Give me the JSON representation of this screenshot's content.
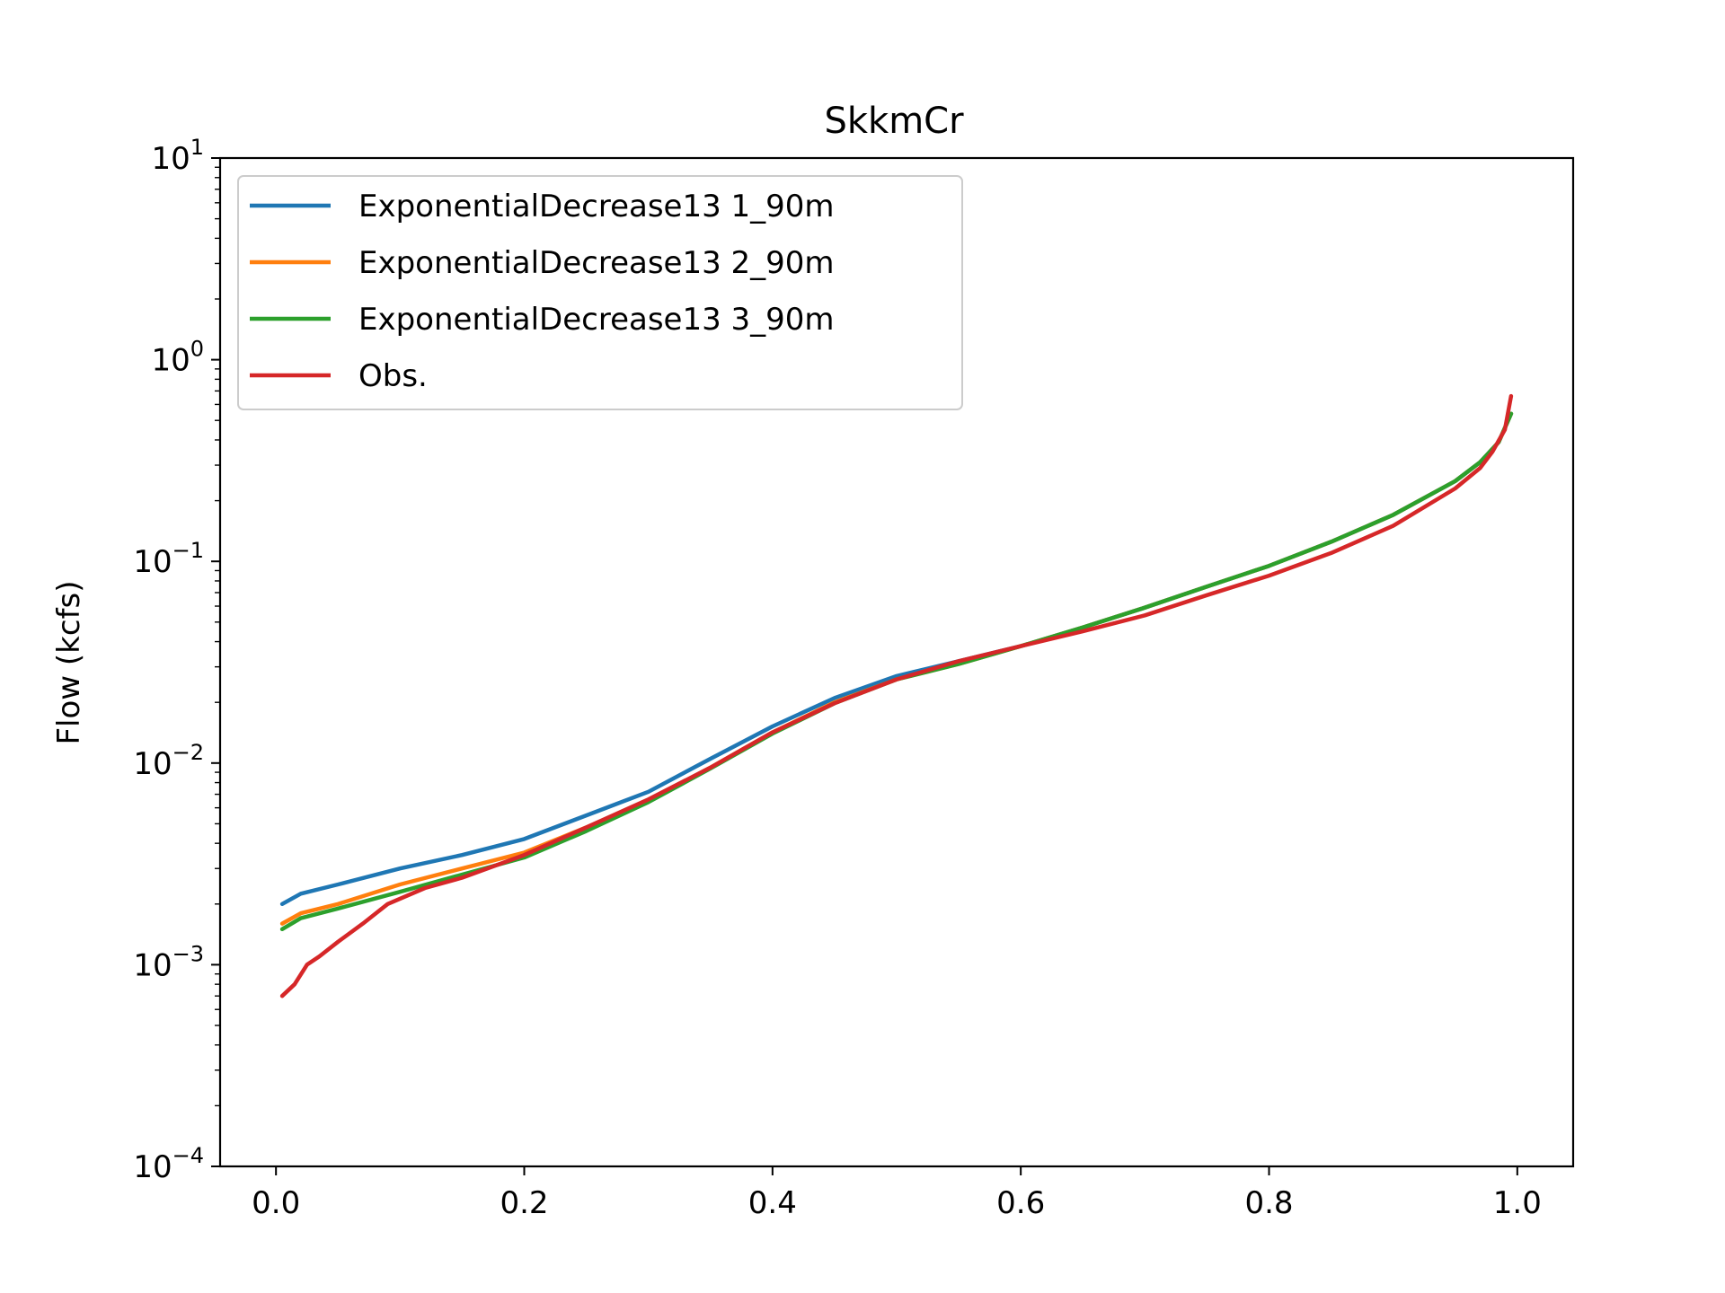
{
  "chart_data": {
    "type": "line",
    "title": "SkkmCr",
    "xlabel": "",
    "ylabel": "Flow (kcfs)",
    "xlim": [
      -0.045,
      1.045
    ],
    "ylim": [
      0.0001,
      10
    ],
    "y_scale": "log",
    "grid": false,
    "legend_position": "upper-left",
    "x_ticks": [
      {
        "value": 0.0,
        "label": "0.0"
      },
      {
        "value": 0.2,
        "label": "0.2"
      },
      {
        "value": 0.4,
        "label": "0.4"
      },
      {
        "value": 0.6,
        "label": "0.6"
      },
      {
        "value": 0.8,
        "label": "0.8"
      },
      {
        "value": 1.0,
        "label": "1.0"
      }
    ],
    "y_ticks": [
      {
        "value": 0.0001,
        "base": "10",
        "exp": "−4"
      },
      {
        "value": 0.001,
        "base": "10",
        "exp": "−3"
      },
      {
        "value": 0.01,
        "base": "10",
        "exp": "−2"
      },
      {
        "value": 0.1,
        "base": "10",
        "exp": "−1"
      },
      {
        "value": 1,
        "base": "10",
        "exp": "0"
      },
      {
        "value": 10,
        "base": "10",
        "exp": "1"
      }
    ],
    "series": [
      {
        "name": "ExponentialDecrease13 1_90m",
        "color": "#1f77b4",
        "x": [
          0.005,
          0.02,
          0.05,
          0.1,
          0.15,
          0.2,
          0.25,
          0.3,
          0.35,
          0.4,
          0.45,
          0.5,
          0.55,
          0.6,
          0.65,
          0.7,
          0.75,
          0.8,
          0.85,
          0.9,
          0.95,
          0.97,
          0.985,
          0.995
        ],
        "y": [
          0.002,
          0.00225,
          0.0025,
          0.003,
          0.0035,
          0.0042,
          0.0055,
          0.0072,
          0.0105,
          0.0152,
          0.021,
          0.027,
          0.032,
          0.038,
          0.047,
          0.059,
          0.075,
          0.095,
          0.125,
          0.17,
          0.25,
          0.31,
          0.39,
          0.54
        ]
      },
      {
        "name": "ExponentialDecrease13 2_90m",
        "color": "#ff7f0e",
        "x": [
          0.005,
          0.02,
          0.05,
          0.1,
          0.15,
          0.2,
          0.25,
          0.3,
          0.35,
          0.4,
          0.45,
          0.5,
          0.55,
          0.6,
          0.65,
          0.7,
          0.75,
          0.8,
          0.85,
          0.9,
          0.95,
          0.97,
          0.985,
          0.995
        ],
        "y": [
          0.0016,
          0.0018,
          0.002,
          0.0025,
          0.003,
          0.0036,
          0.0048,
          0.0065,
          0.0095,
          0.0142,
          0.02,
          0.026,
          0.031,
          0.038,
          0.047,
          0.059,
          0.075,
          0.095,
          0.125,
          0.17,
          0.25,
          0.31,
          0.39,
          0.54
        ]
      },
      {
        "name": "ExponentialDecrease13 3_90m",
        "color": "#2ca02c",
        "x": [
          0.005,
          0.02,
          0.05,
          0.1,
          0.15,
          0.2,
          0.25,
          0.3,
          0.35,
          0.4,
          0.45,
          0.5,
          0.55,
          0.6,
          0.65,
          0.7,
          0.75,
          0.8,
          0.85,
          0.9,
          0.95,
          0.97,
          0.985,
          0.995
        ],
        "y": [
          0.0015,
          0.0017,
          0.0019,
          0.0023,
          0.0028,
          0.0034,
          0.0046,
          0.0064,
          0.0094,
          0.014,
          0.0198,
          0.026,
          0.031,
          0.038,
          0.047,
          0.059,
          0.075,
          0.095,
          0.125,
          0.17,
          0.25,
          0.31,
          0.39,
          0.54
        ]
      },
      {
        "name": "Obs.",
        "color": "#d62728",
        "x": [
          0.005,
          0.015,
          0.025,
          0.035,
          0.05,
          0.07,
          0.09,
          0.12,
          0.15,
          0.2,
          0.25,
          0.3,
          0.35,
          0.4,
          0.45,
          0.5,
          0.55,
          0.6,
          0.65,
          0.7,
          0.75,
          0.8,
          0.85,
          0.9,
          0.95,
          0.97,
          0.98,
          0.99,
          0.995
        ],
        "y": [
          0.0007,
          0.0008,
          0.001,
          0.0011,
          0.0013,
          0.0016,
          0.002,
          0.0024,
          0.0027,
          0.0035,
          0.0048,
          0.0066,
          0.0095,
          0.0142,
          0.0198,
          0.026,
          0.032,
          0.038,
          0.045,
          0.054,
          0.068,
          0.085,
          0.11,
          0.15,
          0.23,
          0.29,
          0.35,
          0.45,
          0.66
        ]
      }
    ]
  }
}
